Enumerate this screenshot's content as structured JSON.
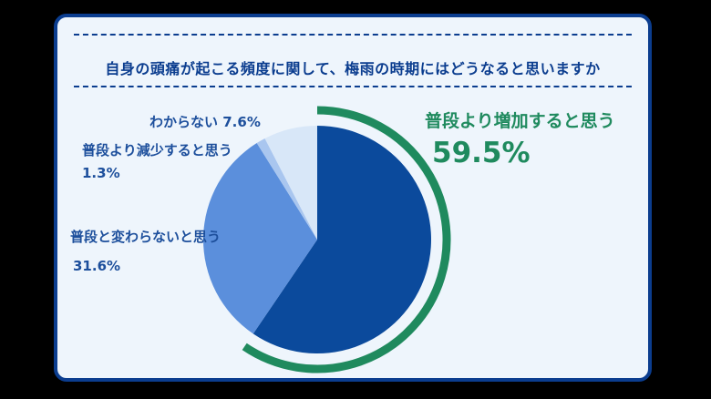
{
  "title": "自身の頭痛が起こる頻度に関して、梅雨の時期にはどうなると思いますか",
  "chart_data": {
    "type": "pie",
    "title": "自身の頭痛が起こる頻度に関して、梅雨の時期にはどうなると思いますか",
    "slices": [
      {
        "label": "普段より増加すると思う",
        "value": 59.5,
        "value_label": "59.5%",
        "color": "#0b4a9c"
      },
      {
        "label": "普段と変わらないと思う",
        "value": 31.6,
        "value_label": "31.6%",
        "color": "#5b8fdc"
      },
      {
        "label": "普段より減少すると思う",
        "value": 1.3,
        "value_label": "1.3%",
        "color": "#a9c6ef"
      },
      {
        "label": "わからない",
        "value": 7.6,
        "value_label": "7.6%",
        "color": "#d8e7f8"
      }
    ],
    "highlight_color": "#1f8a5e"
  }
}
